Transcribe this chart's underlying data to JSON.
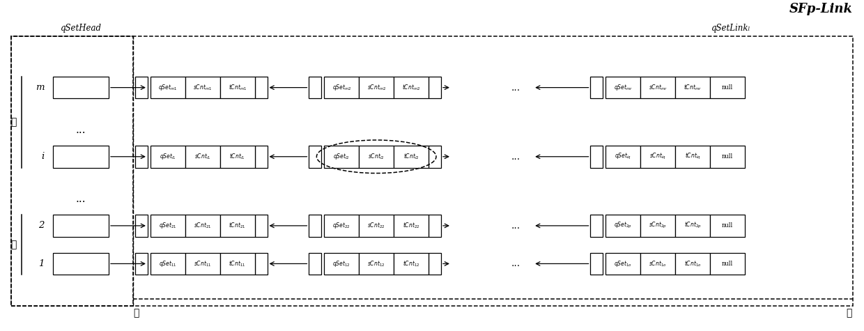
{
  "title": "SFp-Link",
  "bg_color": "#ffffff",
  "label_qSetHead": "qSetHead",
  "label_qSetLink": "qSetLinkₗ",
  "label_front": "前",
  "label_back": "后",
  "label_high": "高",
  "label_low": "低",
  "cell_texts": {
    "qSet_m1": "$qSet_{m1}$",
    "sCnt_m1": "$sCnt_{m1}$",
    "tCnt_m1": "$tCnt_{m1}$",
    "qSet_m2": "$qSet_{m2}$",
    "sCnt_m2": "$sCnt_{m2}$",
    "tCnt_m2": "$tCnt_{m2}$",
    "qSet_mr": "$qSet_{mr}$",
    "sCnt_mr": "$sCnt_{mr}$",
    "tCnt_mr": "$tCnt_{mr}$",
    "qSet_i1": "$qSet_{i1}$",
    "sCnt_i1": "$sCnt_{i1}$",
    "tCnt_i1": "$tCnt_{i1}$",
    "qSet_i2": "$qSet_{i2}$",
    "sCnt_i2": "$sCnt_{i2}$",
    "tCnt_i2": "$tCnt_{i2}$",
    "qSet_iq": "$qSet_{iq}$",
    "sCnt_iq": "$sCnt_{iq}$",
    "tCnt_iq": "$tCnt_{iq}$",
    "qSet_21": "$qSet_{21}$",
    "sCnt_21": "$sCnt_{21}$",
    "tCnt_21": "$tCnt_{21}$",
    "qSet_22": "$qSet_{22}$",
    "sCnt_22": "$sCnt_{22}$",
    "tCnt_22": "$tCnt_{22}$",
    "qSet_2p": "$qSet_{2p}$",
    "sCnt_2p": "$sCnt_{2p}$",
    "tCnt_2p": "$tCnt_{2p}$",
    "qSet_11": "$qSet_{11}$",
    "sCnt_11": "$sCnt_{11}$",
    "tCnt_11": "$tCnt_{11}$",
    "qSet_12": "$qSet_{12}$",
    "sCnt_12": "$sCnt_{12}$",
    "tCnt_12": "$tCnt_{12}$",
    "qSet_1o": "$qSet_{1o}$",
    "sCnt_1o": "$sCnt_{1o}$",
    "tCnt_1o": "$tCnt_{1o}$",
    "null": "null"
  },
  "rows": [
    {
      "label": "m",
      "y": 33.5,
      "cells1": [
        "qSet_m1",
        "sCnt_m1",
        "tCnt_m1"
      ],
      "cells2": [
        "qSet_m2",
        "sCnt_m2",
        "tCnt_m2"
      ],
      "cells_last": [
        "qSet_mr",
        "sCnt_mr",
        "tCnt_mr",
        "null"
      ],
      "highlight": false
    },
    {
      "label": "i",
      "y": 23.5,
      "cells1": [
        "qSet_i1",
        "sCnt_i1",
        "tCnt_i1"
      ],
      "cells2": [
        "qSet_i2",
        "sCnt_i2",
        "tCnt_i2"
      ],
      "cells_last": [
        "qSet_iq",
        "sCnt_iq",
        "tCnt_iq",
        "null"
      ],
      "highlight": true
    },
    {
      "label": "2",
      "y": 13.5,
      "cells1": [
        "qSet_21",
        "sCnt_21",
        "tCnt_21"
      ],
      "cells2": [
        "qSet_22",
        "sCnt_22",
        "tCnt_22"
      ],
      "cells_last": [
        "qSet_2p",
        "sCnt_2p",
        "tCnt_2p",
        "null"
      ],
      "highlight": false
    },
    {
      "label": "1",
      "y": 8.0,
      "cells1": [
        "qSet_11",
        "sCnt_11",
        "tCnt_11"
      ],
      "cells2": [
        "qSet_12",
        "sCnt_12",
        "tCnt_12"
      ],
      "cells_last": [
        "qSet_1o",
        "sCnt_1o",
        "tCnt_1o",
        "null"
      ],
      "highlight": false
    }
  ],
  "fig_width": 12.4,
  "fig_height": 4.75
}
